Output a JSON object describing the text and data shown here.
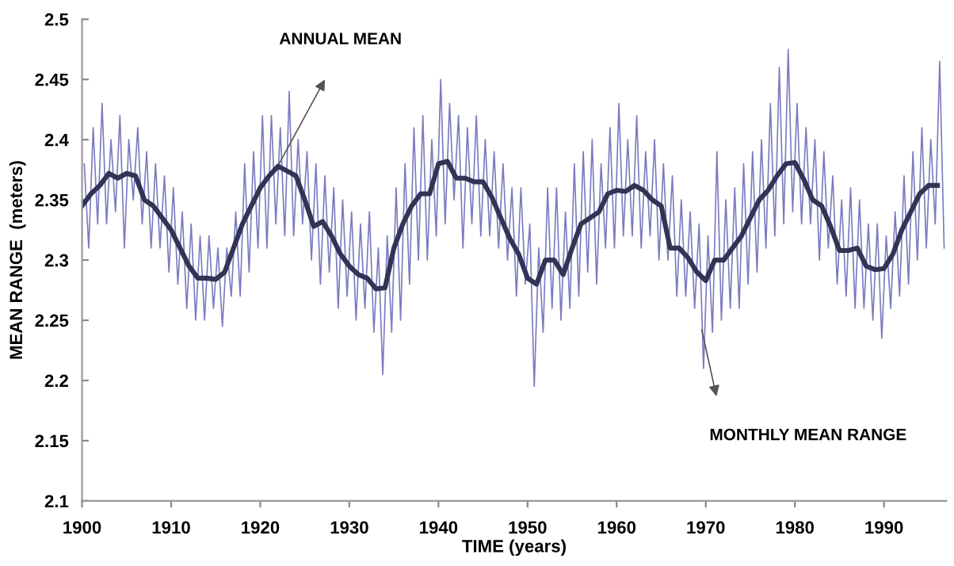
{
  "chart_data": {
    "type": "line",
    "xlabel": "TIME (years)",
    "ylabel": "MEAN RANGE  (meters)",
    "xlim": [
      1900,
      1997
    ],
    "xticks": [
      1900,
      1910,
      1920,
      1930,
      1940,
      1950,
      1960,
      1970,
      1980,
      1990
    ],
    "ylim": [
      2.1,
      2.5
    ],
    "yticks": [
      2.1,
      2.15,
      2.2,
      2.25,
      2.3,
      2.35,
      2.4,
      2.45,
      2.5
    ],
    "grid": false,
    "legend": false,
    "marker": "none",
    "line_style": "solid",
    "annotations": [
      "ANNUAL MEAN",
      "MONTHLY MEAN RANGE"
    ],
    "series": [
      {
        "color": "#7b7bc0",
        "x": [
          1900.25,
          1900.75,
          1901.25,
          1901.75,
          1902.25,
          1902.75,
          1903.25,
          1903.75,
          1904.25,
          1904.75,
          1905.25,
          1905.75,
          1906.25,
          1906.75,
          1907.25,
          1907.75,
          1908.25,
          1908.75,
          1909.25,
          1909.75,
          1910.25,
          1910.75,
          1911.25,
          1911.75,
          1912.25,
          1912.75,
          1913.25,
          1913.75,
          1914.25,
          1914.75,
          1915.25,
          1915.75,
          1916.25,
          1916.75,
          1917.25,
          1917.75,
          1918.25,
          1918.75,
          1919.25,
          1919.75,
          1920.25,
          1920.75,
          1921.25,
          1921.75,
          1922.25,
          1922.75,
          1923.25,
          1923.75,
          1924.25,
          1924.75,
          1925.25,
          1925.75,
          1926.25,
          1926.75,
          1927.25,
          1927.75,
          1928.25,
          1928.75,
          1929.25,
          1929.75,
          1930.25,
          1930.75,
          1931.25,
          1931.75,
          1932.25,
          1932.75,
          1933.25,
          1933.75,
          1934.25,
          1934.75,
          1935.25,
          1935.75,
          1936.25,
          1936.75,
          1937.25,
          1937.75,
          1938.25,
          1938.75,
          1939.25,
          1939.75,
          1940.25,
          1940.75,
          1941.25,
          1941.75,
          1942.25,
          1942.75,
          1943.25,
          1943.75,
          1944.25,
          1944.75,
          1945.25,
          1945.75,
          1946.25,
          1946.75,
          1947.25,
          1947.75,
          1948.25,
          1948.75,
          1949.25,
          1949.75,
          1950.25,
          1950.75,
          1951.25,
          1951.75,
          1952.25,
          1952.75,
          1953.25,
          1953.75,
          1954.25,
          1954.75,
          1955.25,
          1955.75,
          1956.25,
          1956.75,
          1957.25,
          1957.75,
          1958.25,
          1958.75,
          1959.25,
          1959.75,
          1960.25,
          1960.75,
          1961.25,
          1961.75,
          1962.25,
          1962.75,
          1963.25,
          1963.75,
          1964.25,
          1964.75,
          1965.25,
          1965.75,
          1966.25,
          1966.75,
          1967.25,
          1967.75,
          1968.25,
          1968.75,
          1969.25,
          1969.75,
          1970.25,
          1970.75,
          1971.25,
          1971.75,
          1972.25,
          1972.75,
          1973.25,
          1973.75,
          1974.25,
          1974.75,
          1975.25,
          1975.75,
          1976.25,
          1976.75,
          1977.25,
          1977.75,
          1978.25,
          1978.75,
          1979.25,
          1979.75,
          1980.25,
          1980.75,
          1981.25,
          1981.75,
          1982.25,
          1982.75,
          1983.25,
          1983.75,
          1984.25,
          1984.75,
          1985.25,
          1985.75,
          1986.25,
          1986.75,
          1987.25,
          1987.75,
          1988.25,
          1988.75,
          1989.25,
          1989.75,
          1990.25,
          1990.75,
          1991.25,
          1991.75,
          1992.25,
          1992.75,
          1993.25,
          1993.75,
          1994.25,
          1994.75,
          1995.25,
          1995.75,
          1996.25,
          1996.75
        ],
        "values": [
          2.38,
          2.31,
          2.41,
          2.33,
          2.43,
          2.33,
          2.4,
          2.34,
          2.42,
          2.31,
          2.4,
          2.35,
          2.41,
          2.33,
          2.39,
          2.31,
          2.38,
          2.31,
          2.37,
          2.29,
          2.36,
          2.28,
          2.34,
          2.26,
          2.33,
          2.25,
          2.32,
          2.25,
          2.32,
          2.26,
          2.31,
          2.245,
          2.31,
          2.27,
          2.34,
          2.27,
          2.38,
          2.29,
          2.39,
          2.31,
          2.42,
          2.31,
          2.42,
          2.33,
          2.41,
          2.32,
          2.44,
          2.32,
          2.4,
          2.33,
          2.39,
          2.3,
          2.38,
          2.28,
          2.37,
          2.29,
          2.36,
          2.26,
          2.35,
          2.27,
          2.34,
          2.25,
          2.33,
          2.26,
          2.34,
          2.24,
          2.31,
          2.205,
          2.32,
          2.24,
          2.36,
          2.25,
          2.38,
          2.28,
          2.41,
          2.3,
          2.42,
          2.3,
          2.4,
          2.32,
          2.45,
          2.33,
          2.43,
          2.35,
          2.42,
          2.31,
          2.41,
          2.33,
          2.42,
          2.32,
          2.4,
          2.32,
          2.39,
          2.31,
          2.38,
          2.3,
          2.36,
          2.27,
          2.36,
          2.28,
          2.33,
          2.195,
          2.31,
          2.24,
          2.36,
          2.26,
          2.36,
          2.25,
          2.34,
          2.26,
          2.38,
          2.27,
          2.39,
          2.29,
          2.4,
          2.28,
          2.38,
          2.31,
          2.41,
          2.31,
          2.43,
          2.32,
          2.4,
          2.32,
          2.42,
          2.31,
          2.39,
          2.32,
          2.4,
          2.3,
          2.38,
          2.3,
          2.37,
          2.27,
          2.35,
          2.27,
          2.34,
          2.26,
          2.33,
          2.21,
          2.32,
          2.24,
          2.39,
          2.25,
          2.35,
          2.26,
          2.36,
          2.26,
          2.38,
          2.28,
          2.39,
          2.29,
          2.4,
          2.31,
          2.43,
          2.32,
          2.46,
          2.33,
          2.475,
          2.34,
          2.43,
          2.33,
          2.41,
          2.33,
          2.4,
          2.3,
          2.39,
          2.31,
          2.37,
          2.28,
          2.35,
          2.27,
          2.36,
          2.26,
          2.35,
          2.26,
          2.33,
          2.25,
          2.33,
          2.235,
          2.32,
          2.26,
          2.34,
          2.27,
          2.37,
          2.28,
          2.39,
          2.3,
          2.41,
          2.31,
          2.4,
          2.33,
          2.465,
          2.31
        ]
      },
      {
        "color": "#333355",
        "x": [
          1900,
          1901,
          1902,
          1903,
          1904,
          1905,
          1906,
          1907,
          1908,
          1909,
          1910,
          1911,
          1912,
          1913,
          1914,
          1915,
          1916,
          1917,
          1918,
          1919,
          1920,
          1921,
          1922,
          1923,
          1924,
          1925,
          1926,
          1927,
          1928,
          1929,
          1930,
          1931,
          1932,
          1933,
          1934,
          1935,
          1936,
          1937,
          1938,
          1939,
          1940,
          1941,
          1942,
          1943,
          1944,
          1945,
          1946,
          1947,
          1948,
          1949,
          1950,
          1951,
          1952,
          1953,
          1954,
          1955,
          1956,
          1957,
          1958,
          1959,
          1960,
          1961,
          1962,
          1963,
          1964,
          1965,
          1966,
          1967,
          1968,
          1969,
          1970,
          1971,
          1972,
          1973,
          1974,
          1975,
          1976,
          1977,
          1978,
          1979,
          1980,
          1981,
          1982,
          1983,
          1984,
          1985,
          1986,
          1987,
          1988,
          1989,
          1990,
          1991,
          1992,
          1993,
          1994,
          1995,
          1996
        ],
        "values": [
          2.345,
          2.355,
          2.362,
          2.372,
          2.368,
          2.372,
          2.37,
          2.35,
          2.345,
          2.335,
          2.325,
          2.31,
          2.295,
          2.285,
          2.285,
          2.284,
          2.29,
          2.31,
          2.33,
          2.345,
          2.36,
          2.37,
          2.378,
          2.374,
          2.37,
          2.35,
          2.328,
          2.332,
          2.32,
          2.305,
          2.295,
          2.288,
          2.285,
          2.276,
          2.277,
          2.31,
          2.33,
          2.345,
          2.355,
          2.355,
          2.38,
          2.382,
          2.368,
          2.368,
          2.365,
          2.365,
          2.352,
          2.335,
          2.318,
          2.305,
          2.285,
          2.28,
          2.3,
          2.3,
          2.288,
          2.31,
          2.33,
          2.335,
          2.34,
          2.355,
          2.358,
          2.357,
          2.362,
          2.358,
          2.35,
          2.345,
          2.31,
          2.31,
          2.302,
          2.29,
          2.283,
          2.3,
          2.3,
          2.31,
          2.32,
          2.335,
          2.35,
          2.358,
          2.37,
          2.38,
          2.381,
          2.367,
          2.35,
          2.345,
          2.328,
          2.308,
          2.308,
          2.31,
          2.295,
          2.292,
          2.293,
          2.305,
          2.325,
          2.34,
          2.355,
          2.362,
          2.362
        ]
      }
    ]
  }
}
